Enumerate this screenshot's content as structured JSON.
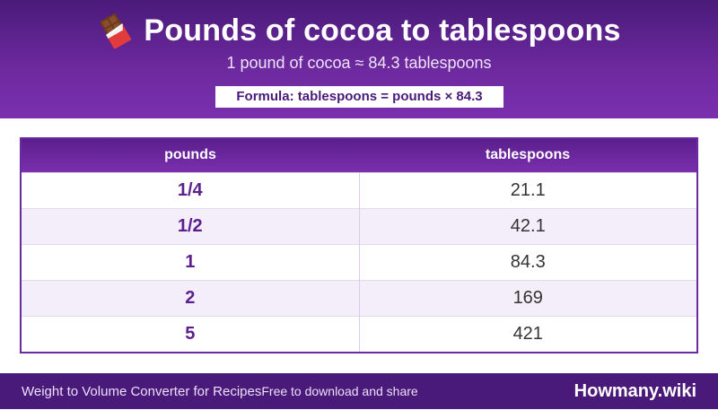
{
  "header": {
    "icon": "chocolate-bar-icon",
    "title": "Pounds of cocoa to tablespoons",
    "subtitle": "1 pound of cocoa ≈ 84.3 tablespoons",
    "formula": "Formula: tablespoons = pounds × 84.3"
  },
  "table": {
    "columns": [
      "pounds",
      "tablespoons"
    ],
    "rows": [
      [
        "1/4",
        "21.1"
      ],
      [
        "1/2",
        "42.1"
      ],
      [
        "1",
        "84.3"
      ],
      [
        "2",
        "169"
      ],
      [
        "5",
        "421"
      ]
    ]
  },
  "footer": {
    "left_text": "Weight to Volume Converter for Recipes",
    "left_subtext": "Free to download and share",
    "brand": "Howmany.wiki"
  },
  "colors": {
    "primary": "#4a1a7a",
    "accent": "#7b2fae",
    "row_alt": "#f3eefa"
  }
}
